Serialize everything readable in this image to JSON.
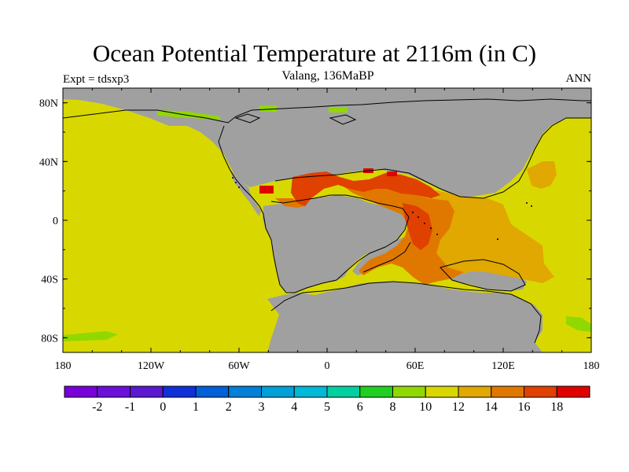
{
  "title": "Ocean Potential Temperature at 2116m (in C)",
  "subtitle": "Valang, 136MaBP",
  "left_label": "Expt = tdsxp3",
  "right_label": "ANN",
  "map": {
    "x_ticks": [
      "180",
      "120W",
      "60W",
      "0",
      "60E",
      "120E",
      "180"
    ],
    "y_ticks": [
      "80N",
      "40N",
      "0",
      "40S",
      "80S"
    ],
    "land_color": "#a0a0a0",
    "ocean_default_color": "#d8d800"
  },
  "colorbar": {
    "labels": [
      "-2",
      "-1",
      "0",
      "1",
      "2",
      "3",
      "4",
      "5",
      "6",
      "8",
      "10",
      "12",
      "14",
      "16",
      "18"
    ],
    "colors": [
      "#7a00d8",
      "#6a10d8",
      "#5a18d0",
      "#1030d8",
      "#0060d8",
      "#0080d8",
      "#00a0d8",
      "#00b8d8",
      "#00d0a0",
      "#20d020",
      "#90d800",
      "#d8d800",
      "#e0a800",
      "#e07800",
      "#e04000",
      "#e00000"
    ]
  }
}
